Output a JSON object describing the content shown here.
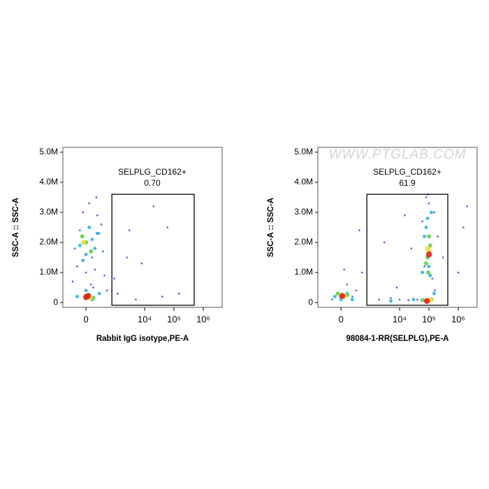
{
  "chart_data": [
    {
      "type": "scatter",
      "ylabel": "SSC-A :: SSC-A",
      "xlabel": "Rabbit IgG isotype,PE-A",
      "xscale": "biexponential",
      "xlim": [
        -600,
        4400000
      ],
      "ylim": [
        -160000,
        5160000
      ],
      "xticks": [
        0,
        {
          "value": 10000,
          "label": "10⁴"
        },
        {
          "value": 100000,
          "label": "10⁵"
        },
        {
          "value": 1000000,
          "label": "10⁶"
        }
      ],
      "yticks": [
        0,
        {
          "value": 1000000,
          "label": "1.0M"
        },
        {
          "value": 2000000,
          "label": "2.0M"
        },
        {
          "value": 3000000,
          "label": "3.0M"
        },
        {
          "value": 4000000,
          "label": "4.0M"
        },
        {
          "value": 5000000,
          "label": "5.0M"
        }
      ],
      "gate": {
        "name": "SELPLG_CD162+",
        "percent": {
          "value": 0.7,
          "label": "0.70"
        },
        "x": [
          750,
          490000
        ],
        "y": [
          -90000,
          3600000
        ]
      },
      "series": [
        {
          "color": "#1f4fd1",
          "x": [
            -150,
            100,
            300,
            -50,
            200,
            50,
            -200,
            350,
            150,
            0,
            250,
            -100,
            80,
            120,
            500,
            1200,
            3000,
            20000,
            60000,
            8000,
            150000,
            2500,
            40000,
            900,
            5000,
            -250,
            400,
            180
          ],
          "y": [
            1200000,
            1500000,
            2600000,
            3000000,
            2900000,
            3300000,
            1800000,
            1700000,
            1100000,
            1000000,
            2300000,
            2400000,
            600000,
            500000,
            400000,
            300000,
            2400000,
            3200000,
            2500000,
            1300000,
            300000,
            1500000,
            200000,
            800000,
            100000,
            700000,
            900000,
            3500000
          ]
        },
        {
          "color": "#21b6d6",
          "x": [
            -100,
            100,
            0,
            200,
            50,
            -50,
            150,
            -150,
            250,
            0,
            100
          ],
          "y": [
            1900000,
            2100000,
            1600000,
            2300000,
            2500000,
            1400000,
            1800000,
            200000,
            300000,
            400000,
            100000
          ]
        },
        {
          "color": "#5fd14a",
          "x": [
            0,
            80,
            -60,
            50,
            120
          ],
          "y": [
            2000000,
            1700000,
            2200000,
            250000,
            150000
          ]
        },
        {
          "color": "#f0e030",
          "x": [
            0,
            60,
            -40
          ],
          "y": [
            200000,
            150000,
            2000000
          ]
        },
        {
          "color": "#e02020",
          "x": [
            0,
            30
          ],
          "y": [
            180000,
            220000
          ]
        }
      ]
    },
    {
      "type": "scatter",
      "ylabel": "SSC-A :: SSC-A",
      "xlabel": "98084-1-RR(SELPLG),PE-A",
      "xscale": "biexponential",
      "watermark": "WWW.PTGLAB.COM",
      "xlim": [
        -600,
        4400000
      ],
      "ylim": [
        -160000,
        5160000
      ],
      "xticks": [
        0,
        {
          "value": 10000,
          "label": "10⁴"
        },
        {
          "value": 100000,
          "label": "10⁵"
        },
        {
          "value": 1000000,
          "label": "10⁶"
        }
      ],
      "yticks": [
        0,
        {
          "value": 1000000,
          "label": "1.0M"
        },
        {
          "value": 2000000,
          "label": "2.0M"
        },
        {
          "value": 3000000,
          "label": "3.0M"
        },
        {
          "value": 4000000,
          "label": "4.0M"
        },
        {
          "value": 5000000,
          "label": "5.0M"
        }
      ],
      "gate": {
        "name": "SELPLG_CD162+",
        "percent": 61.9,
        "x": [
          750,
          440000
        ],
        "y": [
          -90000,
          3600000
        ]
      },
      "series": [
        {
          "color": "#1f4fd1",
          "x": [
            -150,
            100,
            300,
            -50,
            200,
            2000,
            5000,
            10000,
            20000,
            40000,
            80000,
            150000,
            200000,
            300000,
            1000000,
            2000000,
            3000,
            60000,
            100000,
            130000,
            70000,
            90000,
            25000,
            8000,
            500,
            50,
            15000,
            1500000,
            400,
            160000
          ],
          "y": [
            100000,
            600000,
            400000,
            300000,
            200000,
            100000,
            150000,
            100000,
            80000,
            100000,
            3500000,
            3000000,
            2200000,
            1500000,
            1000000,
            3200000,
            2000000,
            2700000,
            3300000,
            800000,
            1200000,
            3600000,
            1800000,
            500000,
            1000000,
            1100000,
            2900000,
            2500000,
            2400000,
            400000
          ]
        },
        {
          "color": "#21b6d6",
          "x": [
            -100,
            100,
            0,
            200,
            60000,
            80000,
            120000,
            100000,
            90000,
            110000,
            70000,
            30000,
            150000,
            5000
          ],
          "y": [
            200000,
            300000,
            100000,
            100000,
            1000000,
            2500000,
            3000000,
            1200000,
            2800000,
            900000,
            2200000,
            100000,
            300000,
            50000
          ]
        },
        {
          "color": "#5fd14a",
          "x": [
            0,
            100,
            -50,
            90000,
            110000,
            100000,
            80000,
            95000,
            120000,
            60000
          ],
          "y": [
            200000,
            250000,
            300000,
            1500000,
            1900000,
            2200000,
            1300000,
            1000000,
            100000,
            80000
          ]
        },
        {
          "color": "#f0e030",
          "x": [
            0,
            50,
            100000,
            90000,
            110000,
            80000
          ],
          "y": [
            250000,
            200000,
            1700000,
            1800000,
            80000,
            60000
          ]
        },
        {
          "color": "#e02020",
          "x": [
            20,
            100000,
            85000
          ],
          "y": [
            220000,
            1600000,
            50000
          ]
        }
      ]
    }
  ]
}
